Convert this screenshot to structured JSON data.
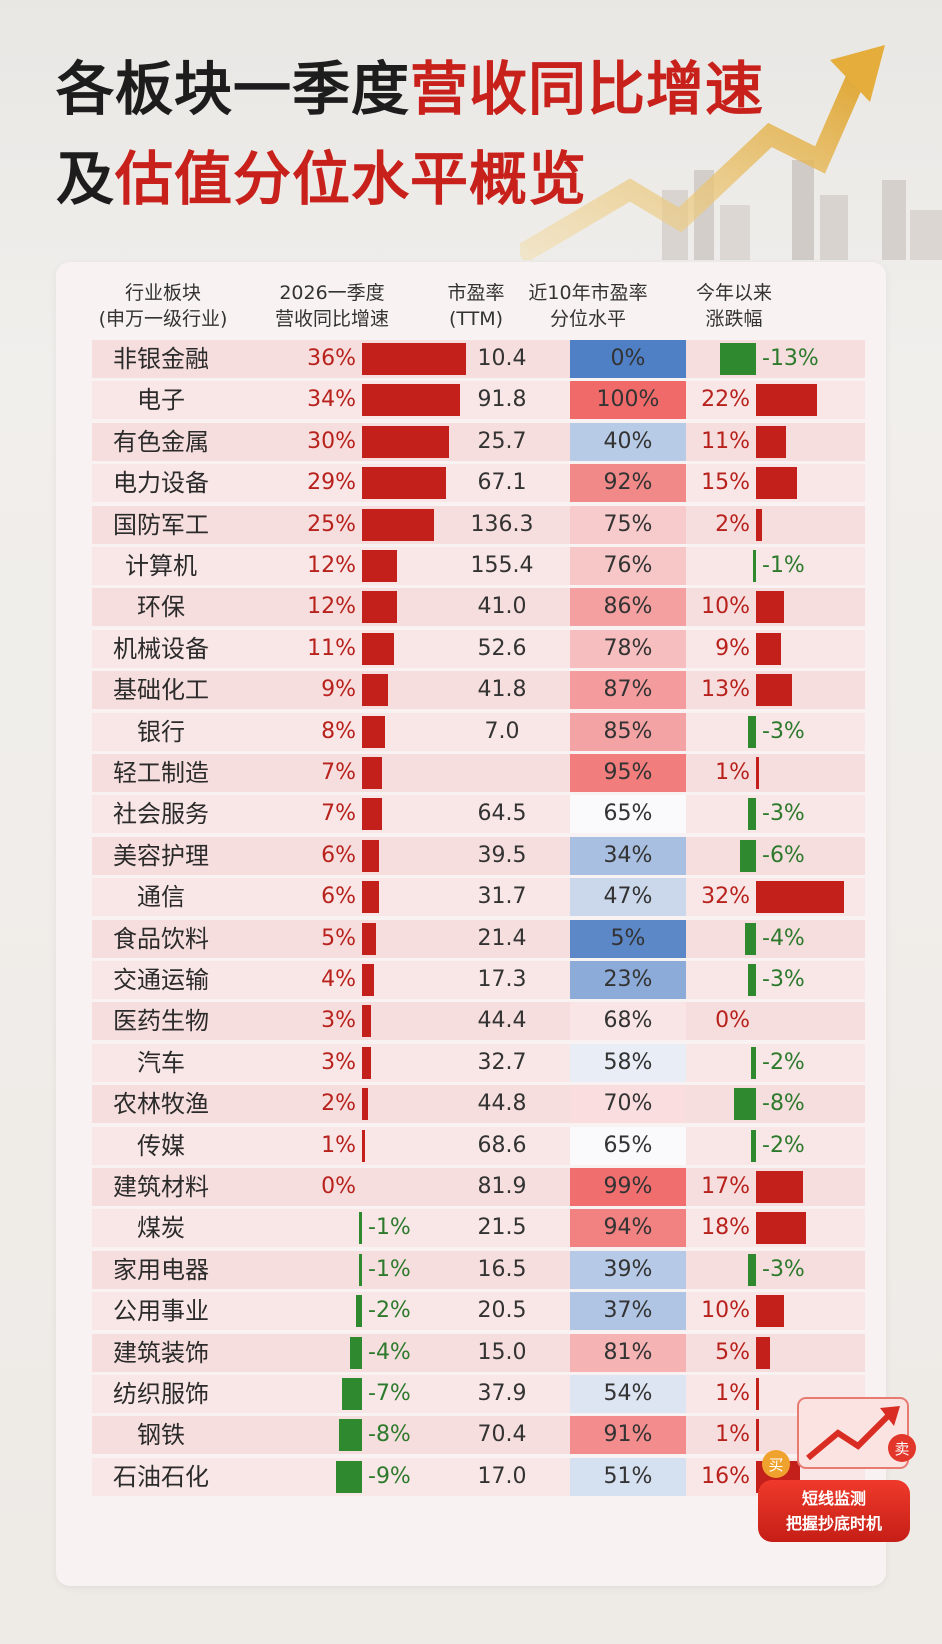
{
  "title": {
    "line1_black": "各板块一季度",
    "line1_red": "营收同比增速",
    "line2_black": "及",
    "line2_red": "估值分位水平概览"
  },
  "columns": {
    "industry": [
      "行业板块",
      "(申万一级行业)"
    ],
    "revenue": [
      "2026一季度",
      "营收同比增速"
    ],
    "pe": [
      "市盈率",
      "(TTM)"
    ],
    "pct": [
      "近10年市盈率",
      "分位水平"
    ],
    "ytd": [
      "今年以来",
      "涨跌幅"
    ]
  },
  "chart_data": {
    "type": "table",
    "rows": [
      {
        "name": "非银金融",
        "rev": 36,
        "pe": "10.4",
        "pct": 0,
        "ytd": -13
      },
      {
        "name": "电子",
        "rev": 34,
        "pe": "91.8",
        "pct": 100,
        "ytd": 22
      },
      {
        "name": "有色金属",
        "rev": 30,
        "pe": "25.7",
        "pct": 40,
        "ytd": 11
      },
      {
        "name": "电力设备",
        "rev": 29,
        "pe": "67.1",
        "pct": 92,
        "ytd": 15
      },
      {
        "name": "国防军工",
        "rev": 25,
        "pe": "136.3",
        "pct": 75,
        "ytd": 2
      },
      {
        "name": "计算机",
        "rev": 12,
        "pe": "155.4",
        "pct": 76,
        "ytd": -1
      },
      {
        "name": "环保",
        "rev": 12,
        "pe": "41.0",
        "pct": 86,
        "ytd": 10
      },
      {
        "name": "机械设备",
        "rev": 11,
        "pe": "52.6",
        "pct": 78,
        "ytd": 9
      },
      {
        "name": "基础化工",
        "rev": 9,
        "pe": "41.8",
        "pct": 87,
        "ytd": 13
      },
      {
        "name": "银行",
        "rev": 8,
        "pe": "7.0",
        "pct": 85,
        "ytd": -3
      },
      {
        "name": "轻工制造",
        "rev": 7,
        "pe": "",
        "pct": 95,
        "ytd": 1
      },
      {
        "name": "社会服务",
        "rev": 7,
        "pe": "64.5",
        "pct": 65,
        "ytd": -3
      },
      {
        "name": "美容护理",
        "rev": 6,
        "pe": "39.5",
        "pct": 34,
        "ytd": -6
      },
      {
        "name": "通信",
        "rev": 6,
        "pe": "31.7",
        "pct": 47,
        "ytd": 32
      },
      {
        "name": "食品饮料",
        "rev": 5,
        "pe": "21.4",
        "pct": 5,
        "ytd": -4
      },
      {
        "name": "交通运输",
        "rev": 4,
        "pe": "17.3",
        "pct": 23,
        "ytd": -3
      },
      {
        "name": "医药生物",
        "rev": 3,
        "pe": "44.4",
        "pct": 68,
        "ytd": 0
      },
      {
        "name": "汽车",
        "rev": 3,
        "pe": "32.7",
        "pct": 58,
        "ytd": -2
      },
      {
        "name": "农林牧渔",
        "rev": 2,
        "pe": "44.8",
        "pct": 70,
        "ytd": -8
      },
      {
        "name": "传媒",
        "rev": 1,
        "pe": "68.6",
        "pct": 65,
        "ytd": -2
      },
      {
        "name": "建筑材料",
        "rev": 0,
        "pe": "81.9",
        "pct": 99,
        "ytd": 17
      },
      {
        "name": "煤炭",
        "rev": -1,
        "pe": "21.5",
        "pct": 94,
        "ytd": 18
      },
      {
        "name": "家用电器",
        "rev": -1,
        "pe": "16.5",
        "pct": 39,
        "ytd": -3
      },
      {
        "name": "公用事业",
        "rev": -2,
        "pe": "20.5",
        "pct": 37,
        "ytd": 10
      },
      {
        "name": "建筑装饰",
        "rev": -4,
        "pe": "15.0",
        "pct": 81,
        "ytd": 5
      },
      {
        "name": "纺织服饰",
        "rev": -7,
        "pe": "37.9",
        "pct": 54,
        "ytd": 1
      },
      {
        "name": "钢铁",
        "rev": -8,
        "pe": "70.4",
        "pct": 91,
        "ytd": 1
      },
      {
        "name": "石油石化",
        "rev": -9,
        "pe": "17.0",
        "pct": 51,
        "ytd": 16
      }
    ]
  },
  "colors": {
    "accent_red": "#c8211c",
    "bar_red": "#c4201b",
    "bar_green": "#2f8a2f",
    "pct_low": "#4f7fc4",
    "pct_high": "#f06a6a"
  },
  "badge": {
    "line1": "短线监测",
    "line2": "把握抄底时机",
    "buy": "买",
    "sell": "卖"
  }
}
